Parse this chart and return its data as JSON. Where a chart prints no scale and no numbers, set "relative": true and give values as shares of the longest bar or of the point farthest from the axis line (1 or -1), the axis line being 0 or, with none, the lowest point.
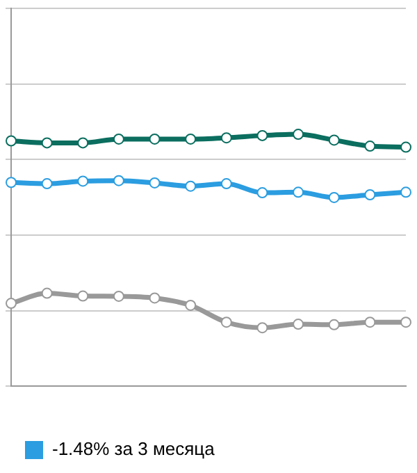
{
  "chart_data": {
    "type": "line",
    "relative": true,
    "categories": [
      null,
      null,
      null,
      null,
      null,
      null,
      null,
      null,
      null,
      null,
      null,
      null
    ],
    "series": [
      {
        "color": "#0b6e5f",
        "values": [
          0.974,
          0.966,
          0.966,
          0.981,
          0.981,
          0.981,
          0.986,
          0.995,
          1,
          0.977,
          0.953,
          0.949
        ]
      },
      {
        "name": "-1.48% за 3 месяца",
        "color": "#2b9de0",
        "values": [
          0.809,
          0.804,
          0.814,
          0.816,
          0.807,
          0.794,
          0.804,
          0.768,
          0.77,
          0.749,
          0.76,
          0.77
        ]
      },
      {
        "color": "#999999",
        "values": [
          0.329,
          0.369,
          0.358,
          0.357,
          0.35,
          0.321,
          0.254,
          0.232,
          0.246,
          0.244,
          0.254,
          0.254
        ]
      }
    ],
    "grid": "y",
    "legend": "bottom",
    "marker": "circle",
    "line_style": "solid"
  }
}
